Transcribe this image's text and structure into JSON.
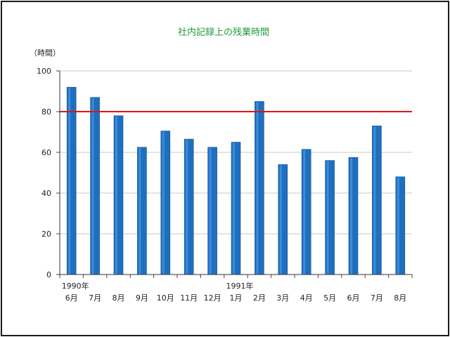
{
  "chart_data": {
    "type": "bar",
    "title": "社内記録上の残業時間",
    "ylabel": "（時間）",
    "ylim": [
      0,
      100
    ],
    "yticks": [
      0,
      20,
      40,
      60,
      80,
      100
    ],
    "categories": [
      "6月",
      "7月",
      "8月",
      "9月",
      "10月",
      "11月",
      "12月",
      "1月",
      "2月",
      "3月",
      "4月",
      "5月",
      "6月",
      "7月",
      "8月"
    ],
    "year_labels": [
      {
        "index": 0,
        "label": "1990年"
      },
      {
        "index": 7,
        "label": "1991年"
      }
    ],
    "values": [
      92,
      87,
      78,
      62.5,
      70.5,
      66.5,
      62.5,
      65,
      85,
      54,
      61.5,
      56,
      57.5,
      73,
      48
    ],
    "reference_line": {
      "value": 80,
      "color": "#e81010"
    },
    "bar_color": "#1f6fc0",
    "grid": true
  }
}
